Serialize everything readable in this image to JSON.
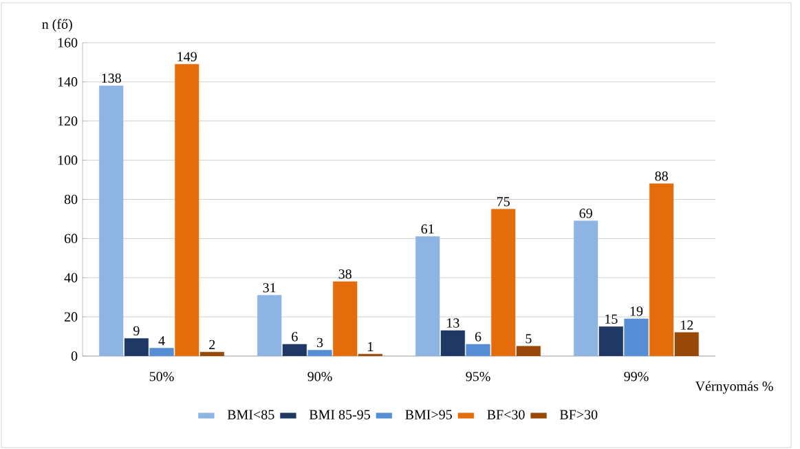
{
  "chart_data": {
    "type": "bar",
    "xlabel": "Vérnyomás %",
    "ylabel": "n (fő)",
    "categories": [
      "50%",
      "90%",
      "95%",
      "99%"
    ],
    "series": [
      {
        "name": "BMI<85",
        "color": "#8db4e2",
        "values": [
          138,
          31,
          61,
          69
        ]
      },
      {
        "name": "BMI 85-95",
        "color": "#1f3864",
        "values": [
          9,
          6,
          13,
          15
        ]
      },
      {
        "name": "BMI>95",
        "color": "#558ed5",
        "values": [
          4,
          3,
          6,
          19
        ]
      },
      {
        "name": "BF<30",
        "color": "#e46c0a",
        "values": [
          149,
          38,
          75,
          88
        ]
      },
      {
        "name": "BF>30",
        "color": "#984807",
        "values": [
          2,
          1,
          5,
          12
        ]
      }
    ],
    "ylim": [
      0,
      160
    ],
    "yticks": [
      0,
      20,
      40,
      60,
      80,
      100,
      120,
      140,
      160
    ],
    "grid": "y",
    "legend": "bottom",
    "data_labels": true
  }
}
